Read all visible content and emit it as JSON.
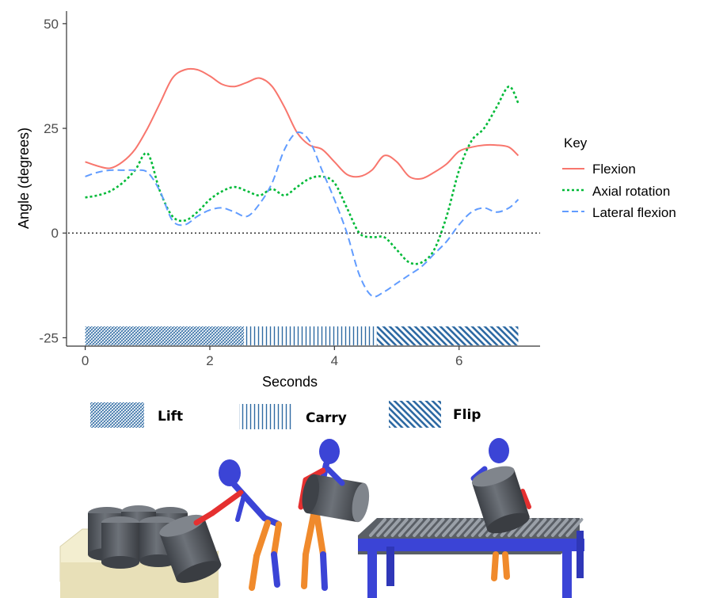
{
  "chart_data": {
    "type": "line",
    "xlabel": "Seconds",
    "ylabel": "Angle (degrees)",
    "xlim": [
      -0.3,
      7.3
    ],
    "ylim": [
      -27,
      53
    ],
    "x_ticks": [
      0,
      2,
      4,
      6
    ],
    "y_ticks": [
      -25,
      0,
      25,
      50
    ],
    "x_tick_labels": [
      "0",
      "2",
      "4",
      "6"
    ],
    "y_tick_labels": [
      "-25",
      "0",
      "25",
      "50"
    ],
    "reference_line": 0,
    "grid": false,
    "legend": {
      "title": "Key",
      "placement": "right"
    },
    "series": [
      {
        "name": "Flexion",
        "color": "#f8766d",
        "dash": "solid",
        "x": [
          0,
          0.2,
          0.4,
          0.6,
          0.8,
          1.0,
          1.2,
          1.4,
          1.6,
          1.8,
          2.0,
          2.2,
          2.4,
          2.6,
          2.8,
          3.0,
          3.2,
          3.4,
          3.6,
          3.8,
          4.0,
          4.2,
          4.4,
          4.6,
          4.8,
          5.0,
          5.2,
          5.4,
          5.6,
          5.8,
          6.0,
          6.2,
          6.4,
          6.6,
          6.8,
          6.95
        ],
        "y": [
          17,
          16,
          15.5,
          17,
          20,
          25,
          31,
          37,
          39,
          39,
          37.5,
          35.5,
          35,
          36,
          37,
          35,
          30,
          24,
          21,
          20,
          17,
          14,
          13.5,
          15,
          18.5,
          17,
          13.5,
          13,
          14.5,
          16.5,
          19.5,
          20.5,
          21,
          21,
          20.5,
          18.5
        ]
      },
      {
        "name": "Axial rotation",
        "color": "#00ba38",
        "dash": "dotted",
        "x": [
          0,
          0.2,
          0.4,
          0.6,
          0.8,
          1.0,
          1.2,
          1.4,
          1.6,
          1.8,
          2.0,
          2.2,
          2.4,
          2.6,
          2.8,
          3.0,
          3.2,
          3.4,
          3.6,
          3.8,
          4.0,
          4.2,
          4.4,
          4.6,
          4.8,
          5.0,
          5.2,
          5.4,
          5.6,
          5.8,
          6.0,
          6.2,
          6.4,
          6.6,
          6.8,
          6.95
        ],
        "y": [
          8.5,
          9,
          10,
          12,
          15,
          19,
          10,
          4,
          3,
          5,
          8,
          10,
          11,
          10,
          9,
          10.5,
          9,
          11,
          13,
          13.5,
          12,
          6,
          0,
          -1,
          -1,
          -4,
          -7,
          -7,
          -4,
          4,
          15,
          22,
          25,
          30,
          35,
          31
        ]
      },
      {
        "name": "Lateral flexion",
        "color": "#619cff",
        "dash": "dashed",
        "x": [
          0,
          0.2,
          0.4,
          0.6,
          0.8,
          1.0,
          1.2,
          1.4,
          1.6,
          1.8,
          2.0,
          2.2,
          2.4,
          2.6,
          2.8,
          3.0,
          3.2,
          3.4,
          3.6,
          3.8,
          4.0,
          4.2,
          4.4,
          4.6,
          4.8,
          5.0,
          5.2,
          5.4,
          5.6,
          5.8,
          6.0,
          6.2,
          6.4,
          6.6,
          6.8,
          6.95
        ],
        "y": [
          13.5,
          14.5,
          15,
          15,
          15,
          14.5,
          10,
          3,
          2,
          4,
          5.5,
          6,
          5,
          4,
          7,
          12,
          20,
          24,
          22,
          15,
          8,
          0,
          -10,
          -15,
          -14,
          -12,
          -10,
          -8,
          -5,
          -2,
          2,
          5,
          6,
          5,
          6,
          8
        ]
      }
    ],
    "activities": [
      {
        "name": "Lift",
        "start": 0,
        "end": 2.55,
        "pattern": "crosshatch"
      },
      {
        "name": "Carry",
        "start": 2.55,
        "end": 4.68,
        "pattern": "vertical"
      },
      {
        "name": "Flip",
        "start": 4.68,
        "end": 6.95,
        "pattern": "diagonal"
      }
    ]
  },
  "activity_legend": {
    "lift_label": "Lift",
    "carry_label": "Carry",
    "flip_label": "Flip"
  },
  "colors": {
    "axis": "#333333",
    "activity_bar": "#2e6aa3",
    "stick_figure_body": "#3b44d6",
    "stick_figure_arm": "#e53030",
    "stick_figure_leg": "#f08a2c",
    "conveyor": "#3b44d6",
    "cylinder": "#5a5f66",
    "platform": "#f2ecc8"
  }
}
